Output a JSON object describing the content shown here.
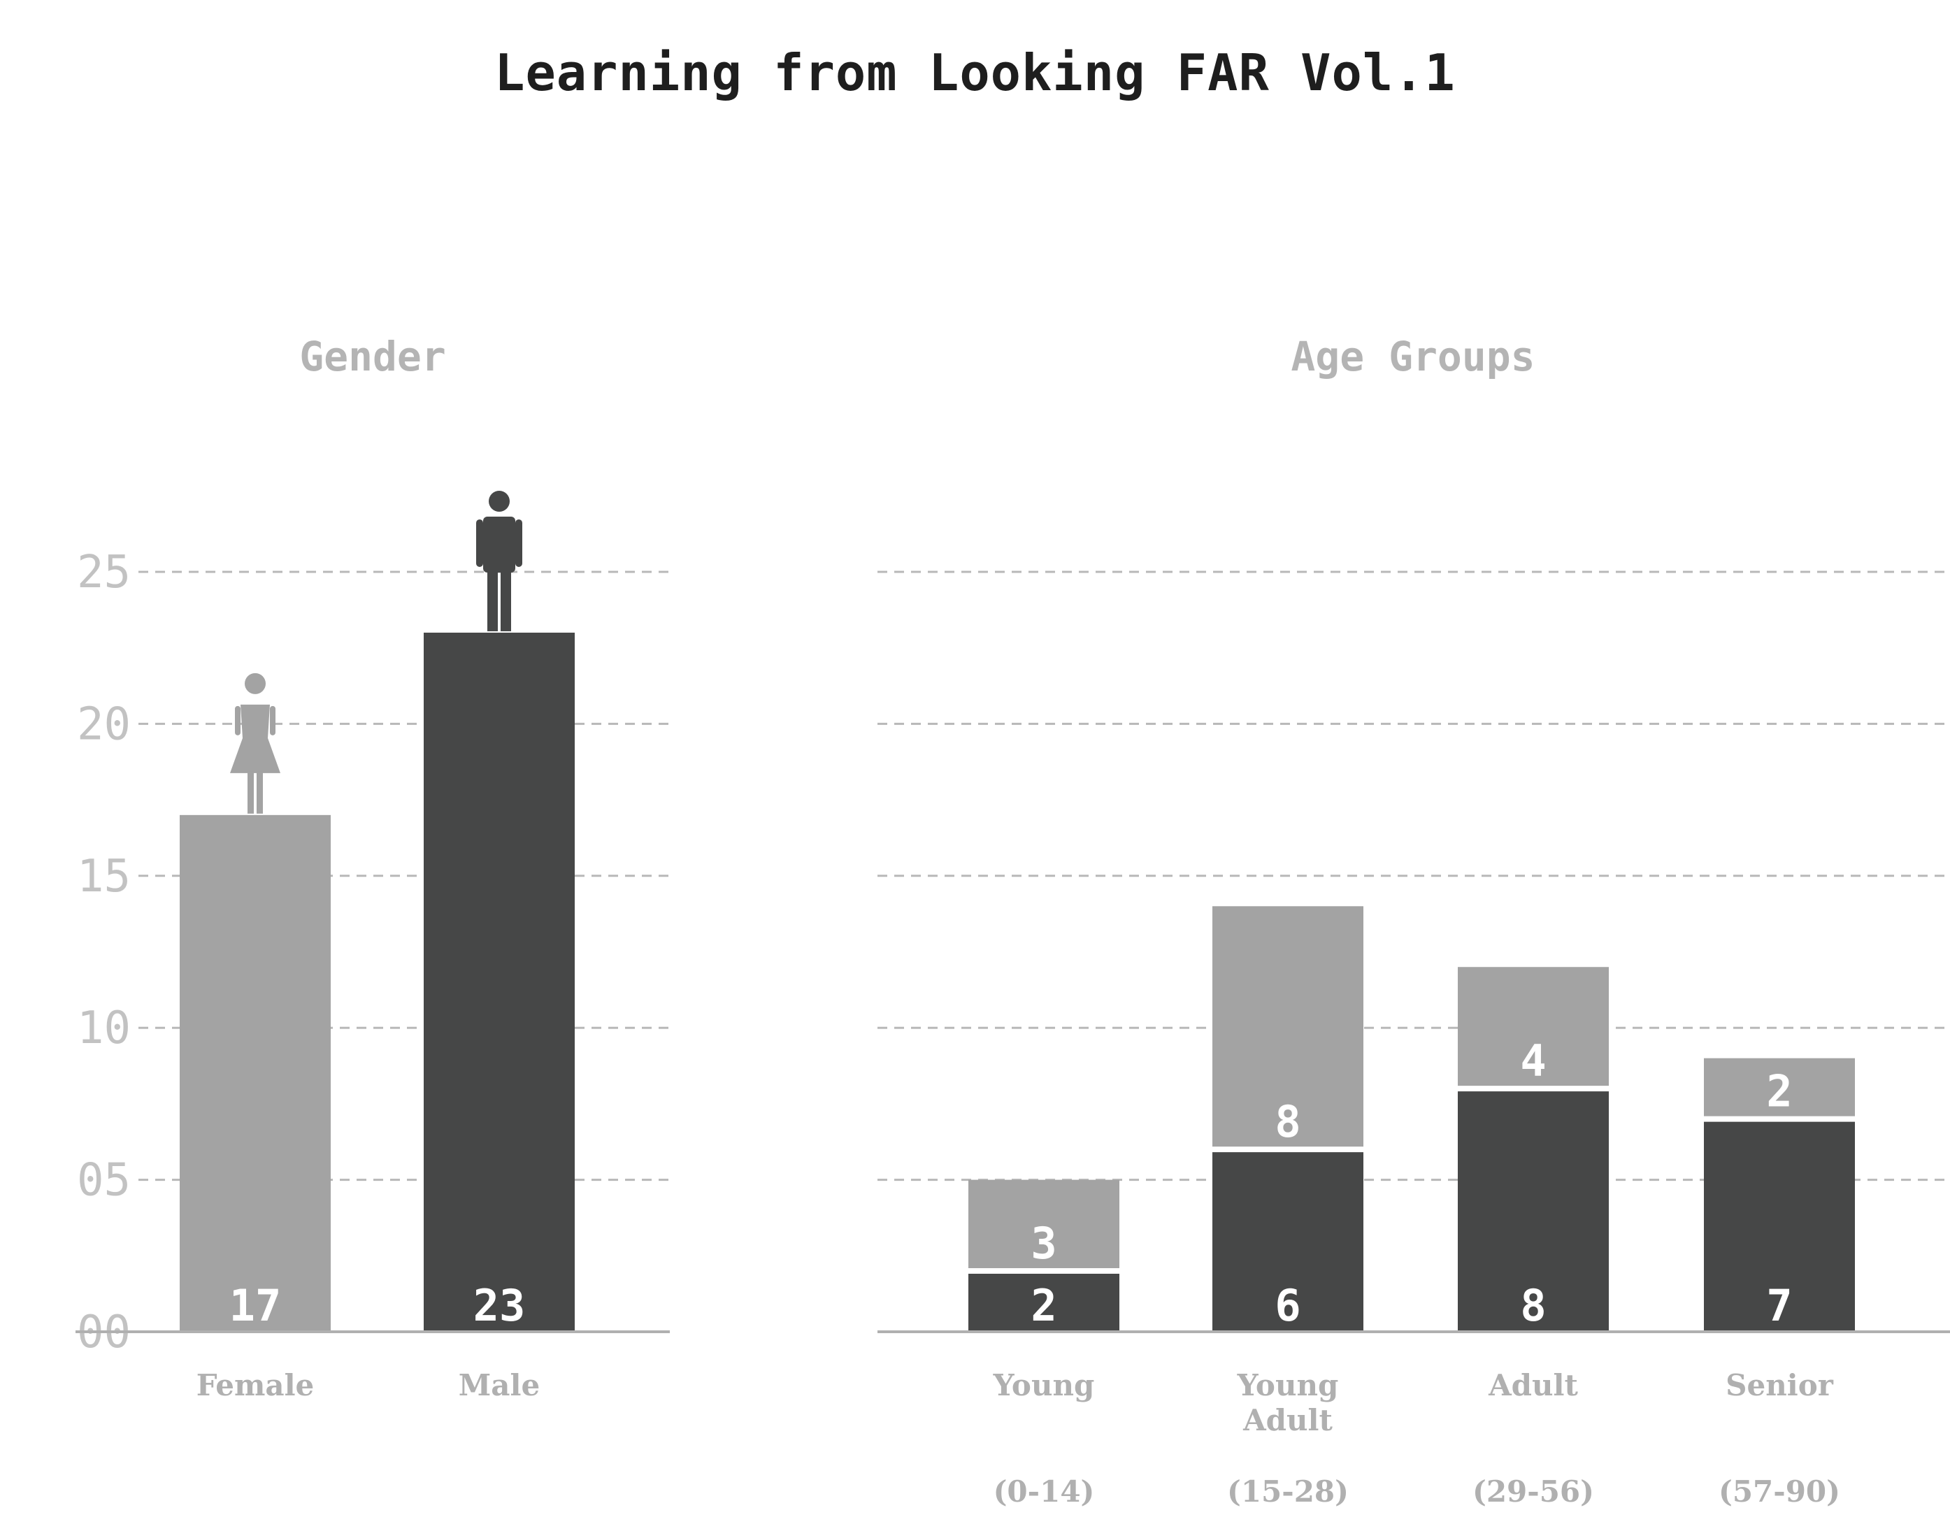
{
  "title": "Learning from Looking FAR Vol.1",
  "colors": {
    "light": "#a3a3a3",
    "dark": "#464747",
    "grid": "#b8b8b8",
    "axis": "#b0b0b0",
    "tick_text": "#c2c2c2",
    "label_text": "#b0b0b0",
    "title_text": "#1e1e1e"
  },
  "chart_data": [
    {
      "type": "bar",
      "title": "Gender",
      "categories": [
        "Female",
        "Male"
      ],
      "values": [
        17,
        23
      ],
      "bar_colors": [
        "light",
        "dark"
      ],
      "icons": [
        "female-person-icon",
        "male-person-icon"
      ],
      "ylim": [
        0,
        25
      ],
      "yticks": [
        0,
        5,
        10,
        15,
        20,
        25
      ],
      "ytick_labels": [
        "00",
        "05",
        "10",
        "15",
        "20",
        "25"
      ],
      "grid": true,
      "xlabel": "",
      "ylabel": ""
    },
    {
      "type": "bar",
      "stacked": true,
      "title": "Age Groups",
      "categories": [
        "Young",
        "Young Adult",
        "Adult",
        "Senior"
      ],
      "category_lines": [
        [
          "Young"
        ],
        [
          "Young",
          "Adult"
        ],
        [
          "Adult"
        ],
        [
          "Senior"
        ]
      ],
      "ranges": [
        "(0-14)",
        "(15-28)",
        "(29-56)",
        "(57-90)"
      ],
      "series": [
        {
          "color": "dark",
          "values": [
            2,
            6,
            8,
            7
          ]
        },
        {
          "color": "light",
          "values": [
            3,
            8,
            4,
            2
          ]
        }
      ],
      "ylim": [
        0,
        25
      ],
      "grid": true,
      "xlabel": "",
      "ylabel": ""
    }
  ]
}
